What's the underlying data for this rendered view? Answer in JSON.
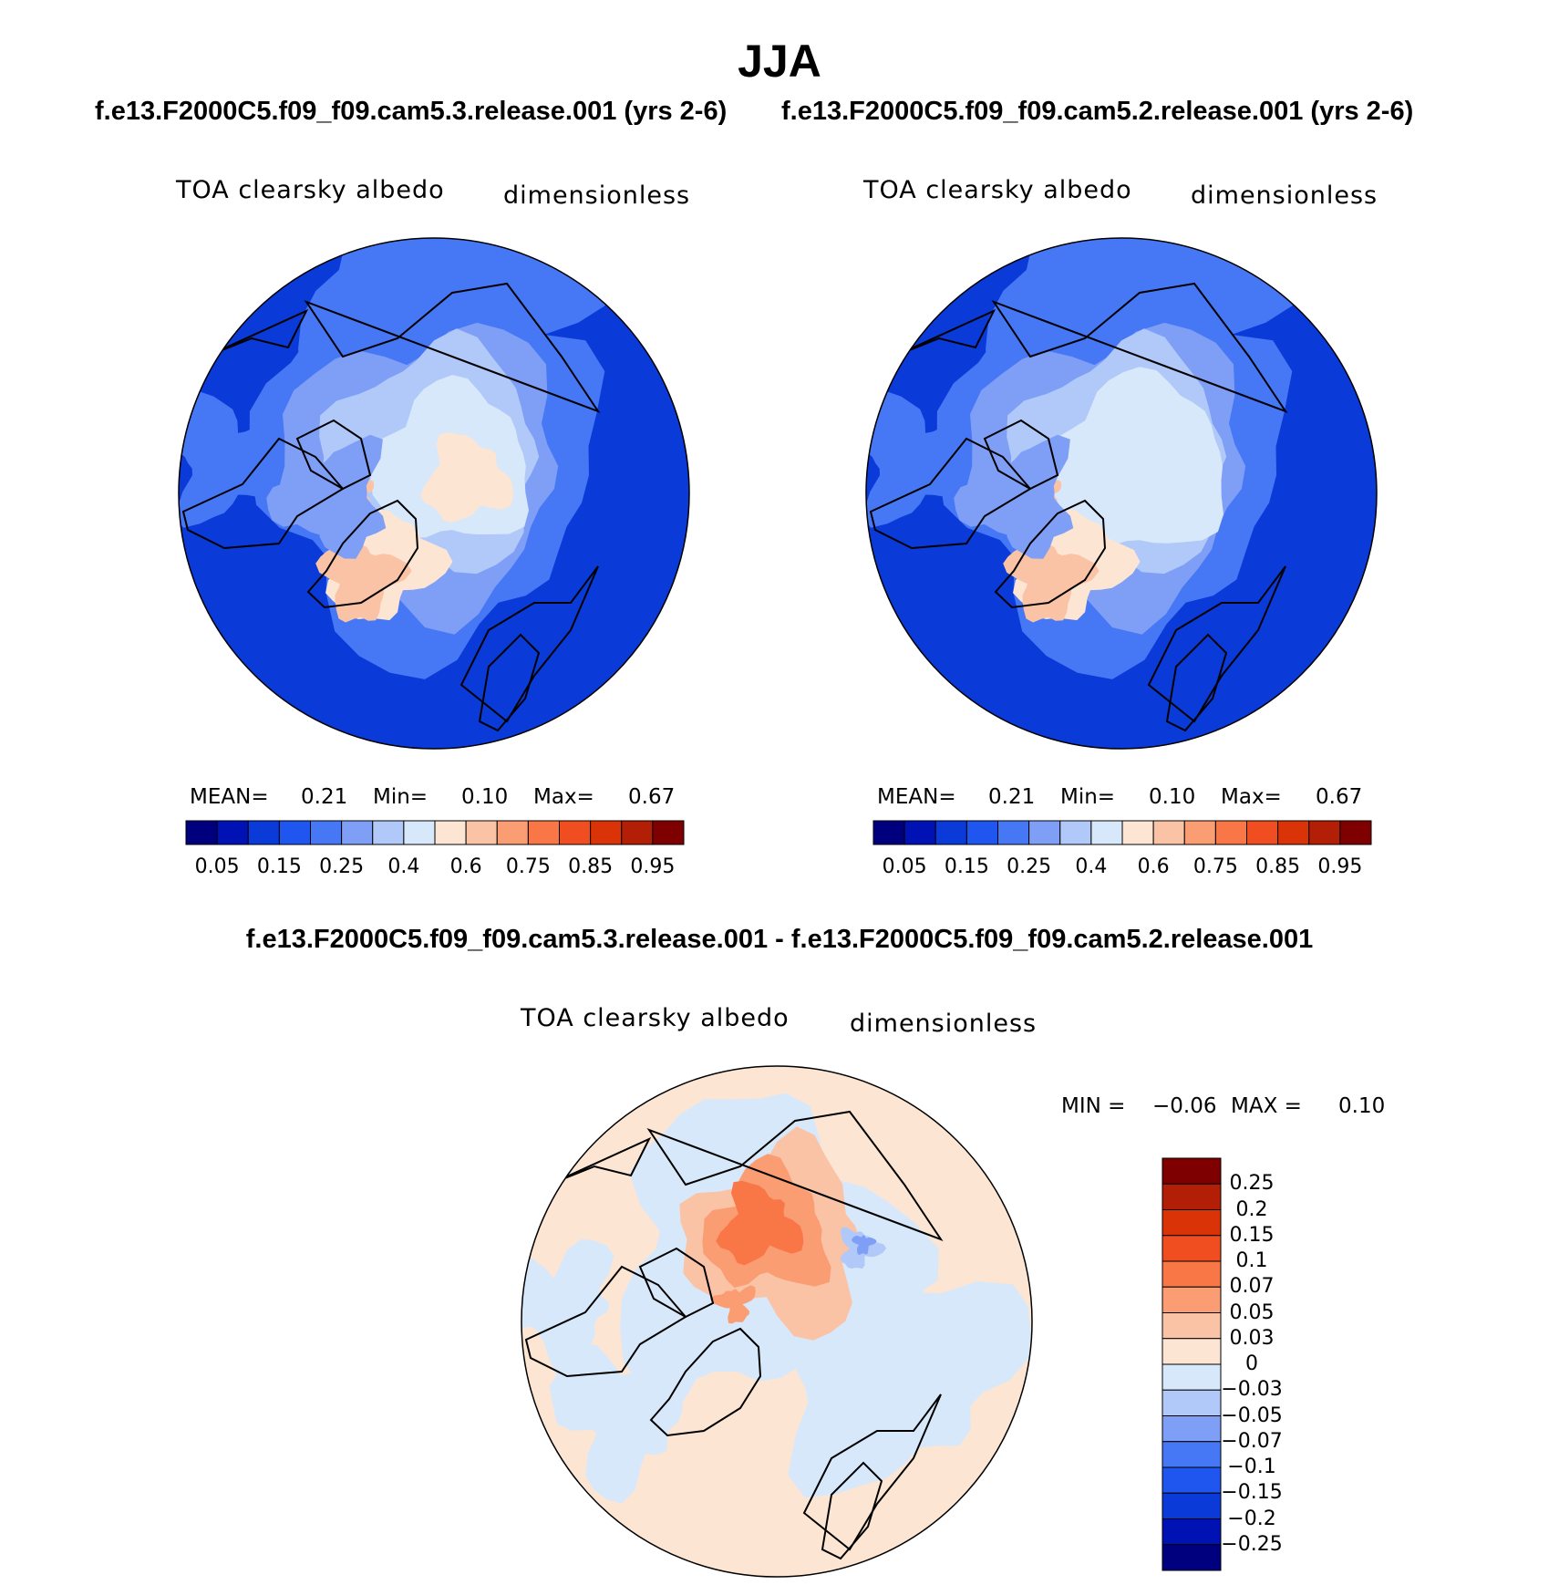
{
  "chart_data": {
    "figure_title": "JJA",
    "difference_title": "f.e13.F2000C5.f09_f09.cam5.3.release.001 - f.e13.F2000C5.f09_f09.cam5.2.release.001",
    "panels": [
      {
        "type": "heatmap",
        "projection": "polar-stereographic-north",
        "case_title": "f.e13.F2000C5.f09_f09.cam5.3.release.001 (yrs 2-6)",
        "variable": "TOA clearsky albedo",
        "units": "dimensionless",
        "stats": {
          "mean_label": "MEAN=",
          "mean": "0.21",
          "min_label": "Min=",
          "min": "0.10",
          "max_label": "Max=",
          "max": "0.67"
        }
      },
      {
        "type": "heatmap",
        "projection": "polar-stereographic-north",
        "case_title": "f.e13.F2000C5.f09_f09.cam5.2.release.001 (yrs 2-6)",
        "variable": "TOA clearsky albedo",
        "units": "dimensionless",
        "stats": {
          "mean_label": "MEAN=",
          "mean": "0.21",
          "min_label": "Min=",
          "min": "0.10",
          "max_label": "Max=",
          "max": "0.67"
        }
      },
      {
        "type": "heatmap",
        "projection": "polar-stereographic-north",
        "variable": "TOA clearsky albedo",
        "units": "dimensionless",
        "stats": {
          "min_label": "MIN =",
          "min": "−0.06",
          "max_label": "MAX =",
          "max": "0.10"
        }
      }
    ],
    "colorbar_main": {
      "orientation": "horizontal",
      "levels": [
        "0.05",
        "0.1",
        "0.15",
        "0.2",
        "0.25",
        "0.3",
        "0.4",
        "0.5",
        "0.6",
        "0.7",
        "0.75",
        "0.8",
        "0.85",
        "0.9",
        "0.95"
      ],
      "tick_labels": [
        "0.05",
        "0.15",
        "0.25",
        "0.4",
        "0.6",
        "0.75",
        "0.85",
        "0.95"
      ],
      "colors": [
        "#00007f",
        "#0012b4",
        "#0a3ad8",
        "#1f56f0",
        "#4677f5",
        "#7f9ff7",
        "#b1c9f9",
        "#d8e8fb",
        "#fde5d3",
        "#fbc3a6",
        "#fa9d72",
        "#f97746",
        "#f04e21",
        "#db3308",
        "#b21f06",
        "#7f0000"
      ]
    },
    "colorbar_diff": {
      "orientation": "vertical",
      "levels": [
        "0.25",
        "0.2",
        "0.15",
        "0.1",
        "0.07",
        "0.05",
        "0.03",
        "0",
        "−0.03",
        "−0.05",
        "−0.07",
        "−0.1",
        "−0.15",
        "−0.2",
        "−0.25"
      ],
      "colors": [
        "#7f0000",
        "#b21f06",
        "#db3308",
        "#f04e21",
        "#f97746",
        "#fa9d72",
        "#fbc3a6",
        "#fde5d3",
        "#d8e8fb",
        "#b1c9f9",
        "#7f9ff7",
        "#4677f5",
        "#1f56f0",
        "#0a3ad8",
        "#0012b4",
        "#00007f"
      ]
    }
  }
}
